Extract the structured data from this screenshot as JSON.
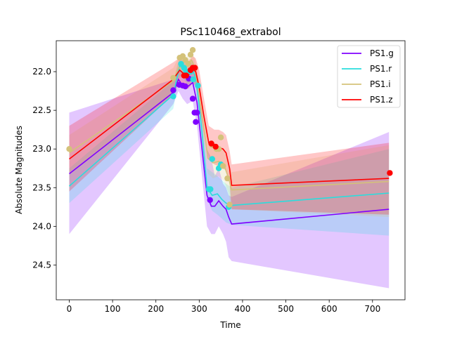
{
  "chart_data": {
    "type": "line",
    "title": "PSc110468_extrabol",
    "xlabel": "Time",
    "ylabel": "Absolute Magnitudes",
    "xlim": [
      -30,
      775
    ],
    "ylim": [
      24.95,
      21.6
    ],
    "y_inverted": true,
    "xticks": [
      0,
      100,
      200,
      300,
      400,
      500,
      600,
      700
    ],
    "yticks": [
      22.0,
      22.5,
      23.0,
      23.5,
      24.0,
      24.5
    ],
    "ytick_labels": [
      "22.0",
      "22.5",
      "23.0",
      "23.5",
      "24.0",
      "24.5"
    ],
    "legend_position": "upper right",
    "grid": false,
    "series": [
      {
        "name": "PS1.g",
        "color": "#8000ff",
        "line": {
          "x": [
            0,
            240,
            252,
            262,
            272,
            285,
            295,
            318,
            328,
            336,
            345,
            355,
            362,
            368,
            375,
            738
          ],
          "y": [
            23.32,
            22.27,
            22.1,
            22.18,
            22.2,
            22.14,
            22.4,
            23.6,
            23.74,
            23.74,
            23.67,
            23.74,
            23.78,
            23.88,
            23.97,
            23.78
          ]
        },
        "band_upper": [
          22.53,
          22.1,
          21.95,
          22.0,
          22.02,
          21.98,
          22.12,
          23.0,
          23.12,
          23.35,
          23.25,
          23.45,
          23.5,
          23.6,
          23.62,
          22.78
        ],
        "band_lower": [
          24.1,
          22.42,
          22.25,
          22.35,
          22.42,
          22.38,
          22.7,
          24.0,
          24.1,
          24.1,
          24.0,
          24.1,
          24.2,
          24.4,
          24.45,
          24.8
        ],
        "points": {
          "x": [
            240,
            254,
            262,
            268,
            276,
            285,
            289,
            292,
            295,
            325
          ],
          "y": [
            22.24,
            22.17,
            22.18,
            22.19,
            22.09,
            22.35,
            22.53,
            22.65,
            22.53,
            23.66
          ]
        }
      },
      {
        "name": "PS1.r",
        "color": "#2adddd",
        "line": {
          "x": [
            0,
            240,
            255,
            265,
            275,
            285,
            293,
            305,
            318,
            330,
            342,
            352,
            362,
            375,
            738
          ],
          "y": [
            23.48,
            22.3,
            21.92,
            21.98,
            22.05,
            21.97,
            22.1,
            22.7,
            23.5,
            23.6,
            23.58,
            23.65,
            23.7,
            23.73,
            23.57
          ]
        },
        "band_upper": [
          23.25,
          22.12,
          21.8,
          21.88,
          21.92,
          21.85,
          21.98,
          22.5,
          23.25,
          23.3,
          23.35,
          23.4,
          23.45,
          23.5,
          23.0
        ],
        "band_lower": [
          23.7,
          22.48,
          22.05,
          22.1,
          22.18,
          22.1,
          22.25,
          22.9,
          23.65,
          23.8,
          23.85,
          23.9,
          23.95,
          23.98,
          24.12
        ],
        "points": {
          "x": [
            240,
            258,
            265,
            270,
            280,
            286,
            297,
            322,
            326,
            330,
            345,
            350,
            368
          ],
          "y": [
            22.32,
            21.9,
            21.95,
            22.0,
            22.0,
            22.1,
            22.18,
            23.52,
            23.52,
            23.13,
            23.25,
            23.2,
            23.75
          ]
        }
      },
      {
        "name": "PS1.i",
        "color": "#d4c27a",
        "line": {
          "x": [
            0,
            240,
            252,
            262,
            272,
            282,
            290,
            305,
            320,
            332,
            345,
            358,
            368,
            375,
            738
          ],
          "y": [
            23.05,
            22.12,
            21.95,
            21.95,
            21.92,
            21.85,
            21.95,
            22.5,
            23.12,
            23.18,
            23.16,
            23.22,
            23.38,
            23.53,
            23.42
          ]
        },
        "band_upper": [
          22.82,
          21.95,
          21.82,
          21.83,
          21.8,
          21.75,
          21.82,
          22.3,
          22.92,
          22.98,
          22.98,
          23.02,
          23.18,
          23.3,
          22.95
        ],
        "band_lower": [
          23.3,
          22.3,
          22.08,
          22.08,
          22.05,
          21.98,
          22.08,
          22.72,
          23.32,
          23.38,
          23.35,
          23.42,
          23.58,
          23.78,
          23.88
        ],
        "points": {
          "x": [
            0,
            240,
            255,
            262,
            268,
            275,
            280,
            285,
            290,
            330,
            340,
            345,
            350,
            355,
            365,
            370
          ],
          "y": [
            23.0,
            22.08,
            21.82,
            21.8,
            21.85,
            21.9,
            21.78,
            21.72,
            21.95,
            22.95,
            23.0,
            23.0,
            22.85,
            23.22,
            23.38,
            23.72
          ]
        }
      },
      {
        "name": "PS1.z",
        "color": "#ff0000",
        "line": {
          "x": [
            0,
            240,
            255,
            265,
            275,
            285,
            292,
            300,
            310,
            322,
            335,
            345,
            355,
            362,
            370,
            375,
            738
          ],
          "y": [
            23.13,
            22.1,
            21.98,
            22.03,
            22.05,
            21.97,
            22.0,
            22.2,
            22.55,
            22.92,
            22.98,
            22.98,
            23.0,
            23.05,
            23.25,
            23.47,
            23.38
          ]
        },
        "band_upper": [
          22.7,
          21.88,
          21.82,
          21.85,
          21.86,
          21.8,
          21.83,
          21.98,
          22.32,
          22.7,
          22.75,
          22.75,
          22.78,
          22.82,
          23.02,
          23.2,
          22.92
        ],
        "band_lower": [
          23.55,
          22.3,
          22.12,
          22.18,
          22.22,
          22.15,
          22.18,
          22.42,
          22.78,
          23.12,
          23.2,
          23.22,
          23.25,
          23.28,
          23.45,
          23.78,
          23.85
        ],
        "points": {
          "x": [
            265,
            270,
            280,
            285,
            290,
            328,
            338,
            740
          ],
          "y": [
            22.05,
            22.05,
            21.98,
            21.95,
            21.95,
            22.93,
            22.97,
            23.31
          ]
        }
      }
    ]
  }
}
